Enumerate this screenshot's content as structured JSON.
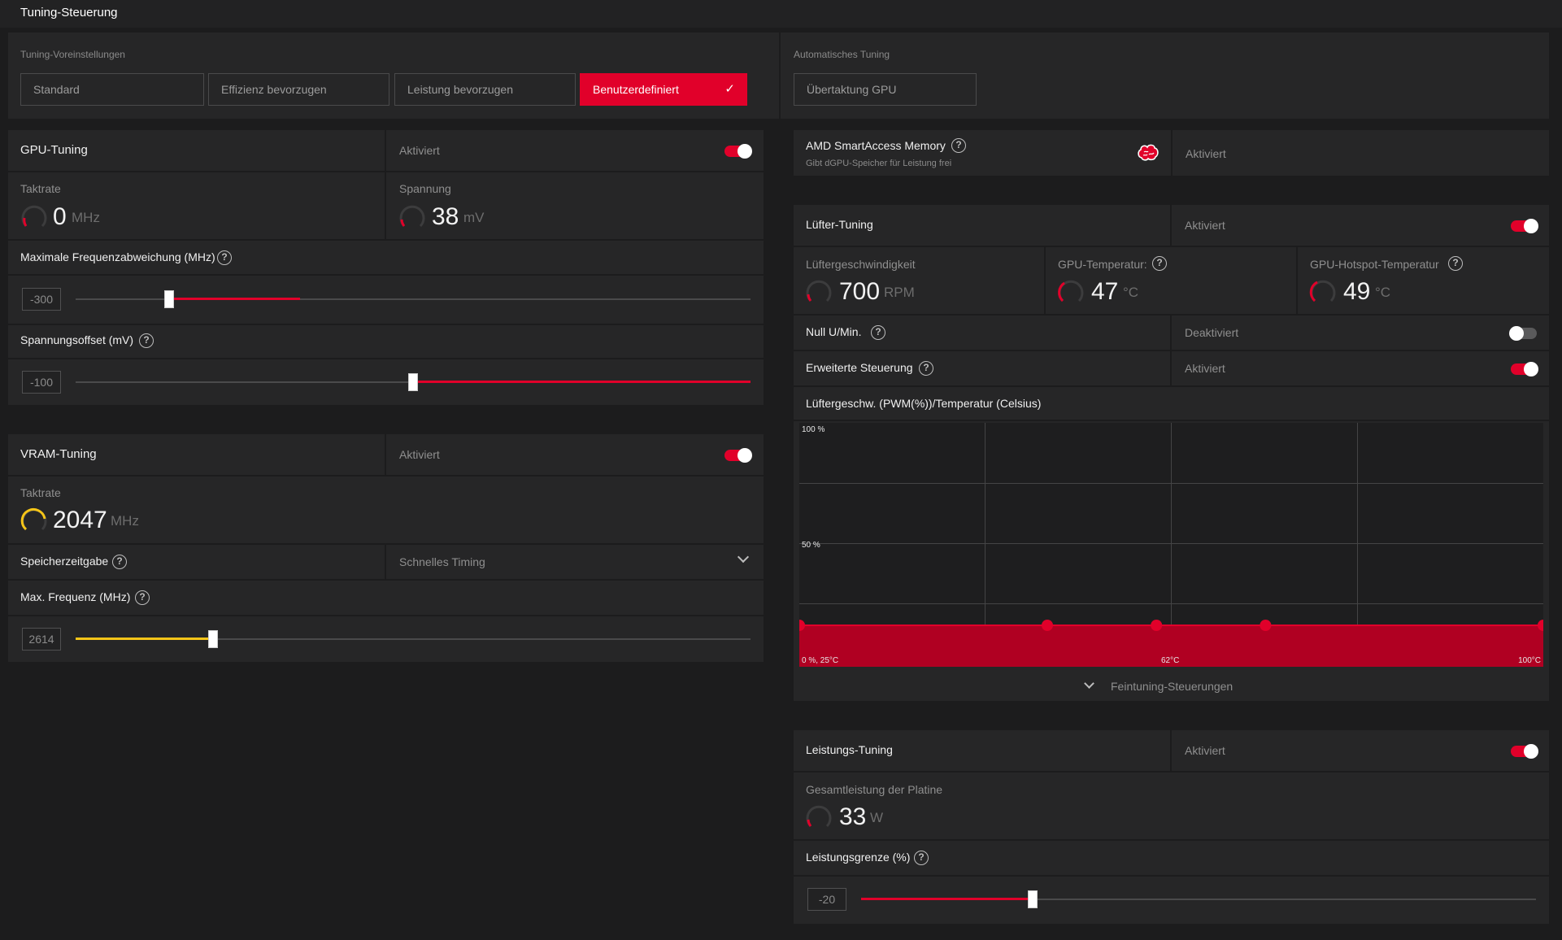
{
  "header": {
    "title": "Tuning-Steuerung"
  },
  "presets": {
    "label": "Tuning-Voreinstellungen",
    "items": [
      {
        "label": "Standard",
        "active": false
      },
      {
        "label": "Effizienz bevorzugen",
        "active": false
      },
      {
        "label": "Leistung bevorzugen",
        "active": false
      },
      {
        "label": "Benutzerdefiniert",
        "active": true
      }
    ]
  },
  "auto_tuning": {
    "label": "Automatisches Tuning",
    "button": "Übertaktung GPU"
  },
  "gpu_tuning": {
    "title": "GPU-Tuning",
    "state": "Aktiviert",
    "clock": {
      "label": "Taktrate",
      "value": "0",
      "unit": "MHz"
    },
    "voltage": {
      "label": "Spannung",
      "value": "38",
      "unit": "mV"
    },
    "max_freq_offset": {
      "label": "Maximale Frequenzabweichung (MHz)",
      "value": "-300",
      "fraction": 0.14
    },
    "voltage_offset": {
      "label": "Spannungsoffset (mV)",
      "value": "-100",
      "fraction": 0.5
    }
  },
  "vram_tuning": {
    "title": "VRAM-Tuning",
    "state": "Aktiviert",
    "clock": {
      "label": "Taktrate",
      "value": "2047",
      "unit": "MHz"
    },
    "timing": {
      "label": "Speicherzeitgabe",
      "value": "Schnelles Timing"
    },
    "max_freq": {
      "label": "Max. Frequenz (MHz)",
      "value": "2614",
      "fraction": 0.2
    }
  },
  "sam": {
    "title": "AMD SmartAccess Memory",
    "subtitle": "Gibt dGPU-Speicher für Leistung frei",
    "state": "Aktiviert",
    "icon": "brain-icon"
  },
  "fan_tuning": {
    "title": "Lüfter-Tuning",
    "state": "Aktiviert",
    "speed": {
      "label": "Lüftergeschwindigkeit",
      "value": "700",
      "unit": "RPM"
    },
    "gpu_temp": {
      "label": "GPU-Temperatur:",
      "value": "47",
      "unit": "°C"
    },
    "hotspot_temp": {
      "label": "GPU-Hotspot-Temperatur",
      "value": "49",
      "unit": "°C"
    },
    "zero_rpm": {
      "label": "Null U/Min.",
      "state": "Deaktiviert"
    },
    "advanced": {
      "label": "Erweiterte Steuerung",
      "state": "Aktiviert"
    },
    "curve": {
      "title": "Lüftergeschw. (PWM(%))/Temperatur (Celsius)",
      "y_top": "100 %",
      "y_mid": "50 %",
      "x_start": "0 %, 25°C",
      "x_mid": "62°C",
      "x_end": "100°C",
      "expander": "Feintuning-Steuerungen"
    }
  },
  "power_tuning": {
    "title": "Leistungs-Tuning",
    "state": "Aktiviert",
    "board_power": {
      "label": "Gesamtleistung der Platine",
      "value": "33",
      "unit": "W"
    },
    "power_limit": {
      "label": "Leistungsgrenze (%)",
      "value": "-20",
      "fraction": 0.25
    }
  },
  "colors": {
    "accent": "#e1002a",
    "vram": "#f5c518",
    "panel": "#262627",
    "background": "#1c1c1d"
  },
  "chart_data": {
    "type": "area",
    "title": "Lüftergeschw. (PWM(%))/Temperatur (Celsius)",
    "xlabel": "Temperatur (Celsius)",
    "ylabel": "PWM (%)",
    "xlim": [
      25,
      100
    ],
    "ylim": [
      0,
      100
    ],
    "x_ticks": [
      "0 %, 25°C",
      "62°C",
      "100°C"
    ],
    "y_ticks": [
      "100 %",
      "50 %"
    ],
    "series": [
      {
        "x": [
          25,
          50,
          61,
          72,
          100
        ],
        "y": [
          17,
          17,
          17,
          17,
          17
        ]
      }
    ]
  }
}
